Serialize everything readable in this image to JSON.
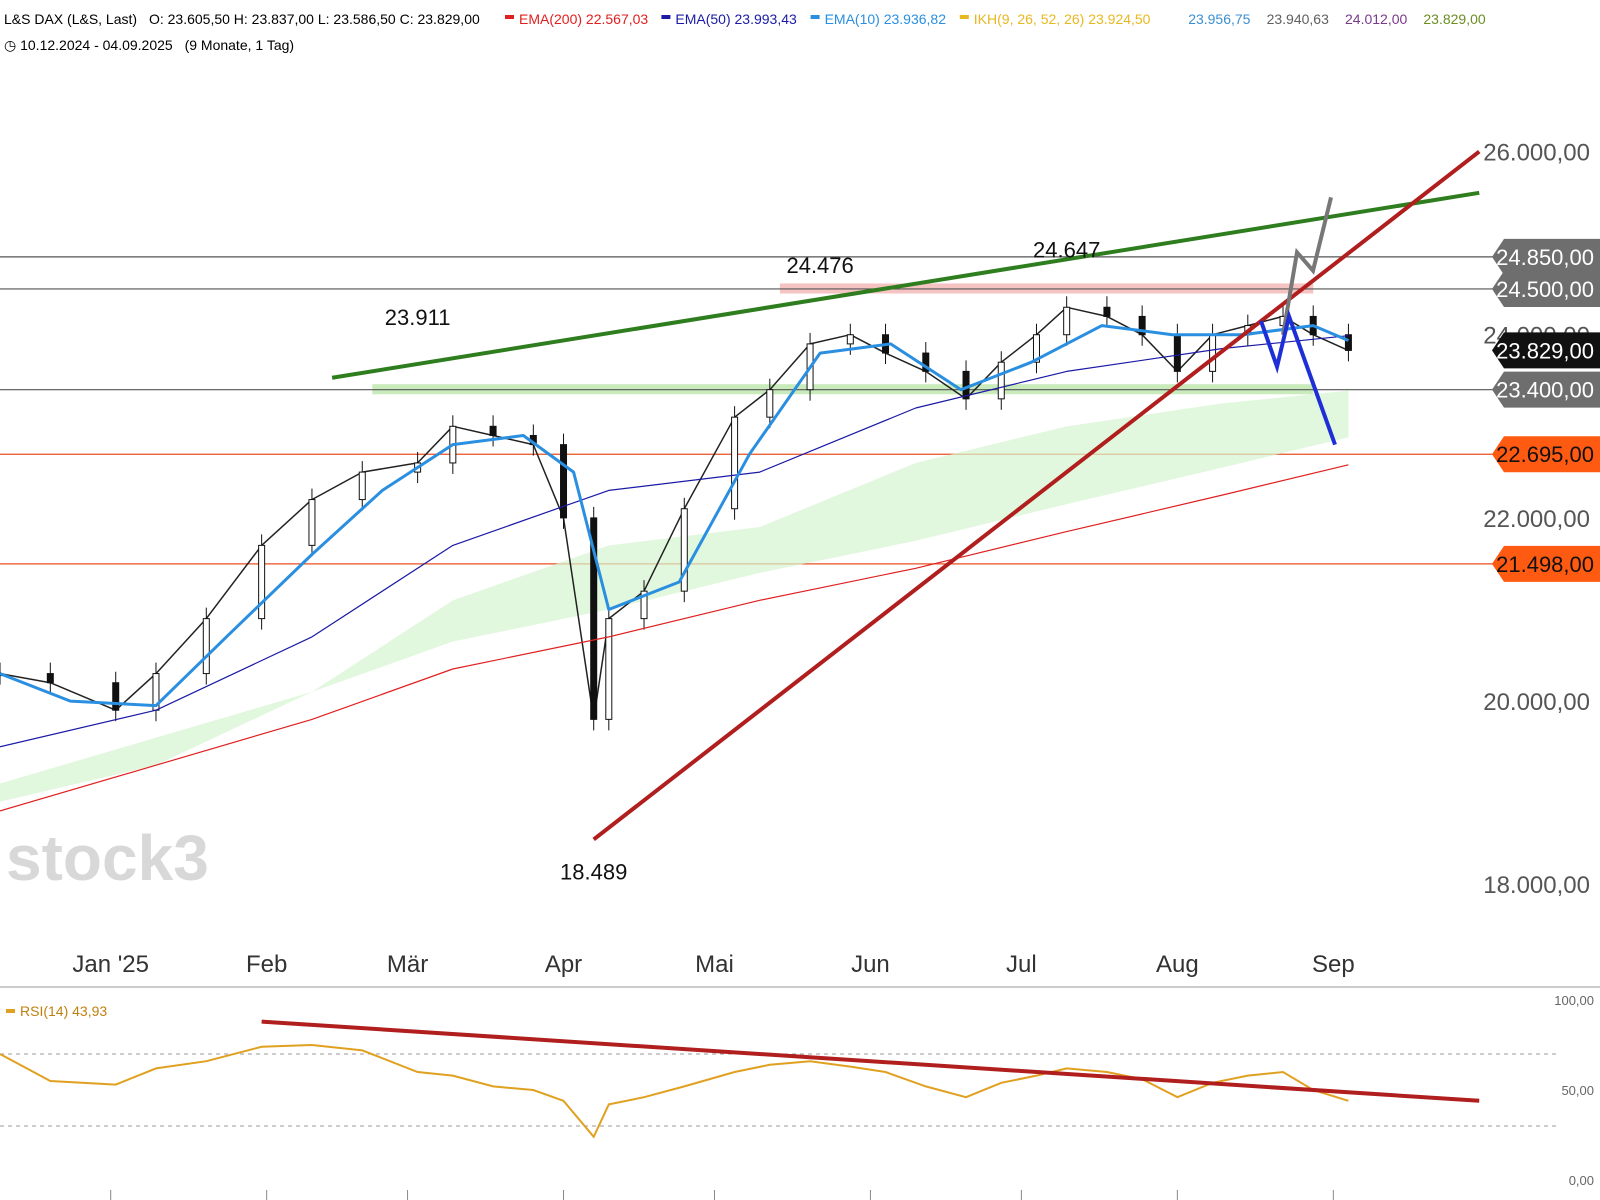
{
  "header": {
    "instrument_prefix": "L&S DAX (L&S, Last)",
    "ohlc": "O: 23.605,50  H: 23.837,00  L: 23.586,50  C: 23.829,00",
    "indicators": [
      {
        "label": "EMA(200)",
        "value": "22.567,03",
        "color": "#e02020"
      },
      {
        "label": "EMA(50)",
        "value": "23.993,43",
        "color": "#1a1aa6"
      },
      {
        "label": "EMA(10)",
        "value": "23.936,82",
        "color": "#2a8fe0"
      },
      {
        "label": "IKH(9, 26, 52, 26)",
        "value": "23.924,50",
        "color": "#e8b820"
      }
    ],
    "extra_values": [
      {
        "value": "23.956,75",
        "color": "#3c8fd0"
      },
      {
        "value": "23.940,63",
        "color": "#606060"
      },
      {
        "value": "24.012,00",
        "color": "#7a3a8a"
      },
      {
        "value": "23.829,00",
        "color": "#6b8e23"
      }
    ],
    "date_range": "10.12.2024 - 04.09.2025",
    "period": "(9 Monate, 1 Tag)"
  },
  "watermark": "stock3",
  "price_badges": [
    {
      "value": 24850,
      "label": "24.850,00",
      "bg": "#6e6e6e",
      "fg": "#ffffff"
    },
    {
      "value": 24500,
      "label": "24.500,00",
      "bg": "#6e6e6e",
      "fg": "#ffffff"
    },
    {
      "value": 23829,
      "label": "23.829,00",
      "bg": "#111111",
      "fg": "#ffffff"
    },
    {
      "value": 23400,
      "label": "23.400,00",
      "bg": "#6e6e6e",
      "fg": "#ffffff"
    },
    {
      "value": 22695,
      "label": "22.695,00",
      "bg": "#ff5a12",
      "fg": "#111111"
    },
    {
      "value": 21498,
      "label": "21.498,00",
      "bg": "#ff5a12",
      "fg": "#111111"
    }
  ],
  "chart_data": [
    {
      "type": "line",
      "title": "L&S DAX (L&S, Last)",
      "ylim": [
        17500,
        27000
      ],
      "y_ticks": [
        {
          "value": 26000,
          "label": "26.000,00"
        },
        {
          "value": 24000,
          "label": "24.000,00"
        },
        {
          "value": 22000,
          "label": "22.000,00"
        },
        {
          "value": 20000,
          "label": "20.000,00"
        },
        {
          "value": 18000,
          "label": "18.000,00"
        }
      ],
      "x_ticks": [
        "Jan '25",
        "Feb",
        "Mär",
        "Apr",
        "Mai",
        "Jun",
        "Jul",
        "Aug",
        "Sep"
      ],
      "annotations": [
        {
          "label": "24.476",
          "x": "2025-05-22",
          "y": 24476
        },
        {
          "label": "24.647",
          "x": "2025-07-10",
          "y": 24647
        },
        {
          "label": "23.911",
          "x": "2025-03-03",
          "y": 23911
        },
        {
          "label": "18.489",
          "x": "2025-04-07",
          "y": 18489
        }
      ],
      "horizontal_levels": [
        {
          "value": 24850,
          "color": "#555555"
        },
        {
          "value": 24500,
          "color": "#555555"
        },
        {
          "value": 23400,
          "color": "#555555"
        },
        {
          "value": 22695,
          "color": "#e85020"
        },
        {
          "value": 21498,
          "color": "#e85020"
        }
      ],
      "zones": [
        {
          "from": 24450,
          "to": 24560,
          "color": "#f4b8b8"
        },
        {
          "from": 23350,
          "to": 23460,
          "color": "#bfe8b0"
        }
      ],
      "trendlines": [
        {
          "from": [
            "2025-02-14",
            23530
          ],
          "to": [
            "2025-09-30",
            25550
          ],
          "color": "#2e7d1e"
        },
        {
          "from": [
            "2025-04-07",
            18489
          ],
          "to": [
            "2025-09-30",
            26000
          ],
          "color": "#b01e1e"
        }
      ],
      "series": [
        {
          "name": "L&S DAX",
          "x": [
            "2024-12-10",
            "2024-12-20",
            "2025-01-02",
            "2025-01-10",
            "2025-01-20",
            "2025-01-31",
            "2025-02-10",
            "2025-02-20",
            "2025-03-03",
            "2025-03-10",
            "2025-03-18",
            "2025-03-26",
            "2025-04-01",
            "2025-04-07",
            "2025-04-10",
            "2025-04-17",
            "2025-04-25",
            "2025-05-05",
            "2025-05-12",
            "2025-05-20",
            "2025-05-28",
            "2025-06-04",
            "2025-06-12",
            "2025-06-20",
            "2025-06-27",
            "2025-07-04",
            "2025-07-10",
            "2025-07-18",
            "2025-07-25",
            "2025-08-01",
            "2025-08-08",
            "2025-08-15",
            "2025-08-22",
            "2025-08-28",
            "2025-09-04"
          ],
          "values": [
            20300,
            20200,
            19900,
            20300,
            20900,
            21700,
            22200,
            22500,
            22600,
            23000,
            22900,
            22800,
            22000,
            19800,
            20900,
            21200,
            22100,
            23100,
            23400,
            23900,
            24000,
            23800,
            23600,
            23300,
            23700,
            24000,
            24300,
            24200,
            24000,
            23600,
            24000,
            24100,
            24200,
            24000,
            23829
          ]
        },
        {
          "name": "EMA(200)",
          "x": [
            "2024-12-10",
            "2025-01-10",
            "2025-02-10",
            "2025-03-10",
            "2025-04-10",
            "2025-05-10",
            "2025-06-10",
            "2025-07-10",
            "2025-08-10",
            "2025-09-04"
          ],
          "values": [
            18800,
            19300,
            19800,
            20350,
            20700,
            21100,
            21450,
            21850,
            22250,
            22580
          ]
        },
        {
          "name": "EMA(50)",
          "x": [
            "2024-12-10",
            "2025-01-10",
            "2025-02-10",
            "2025-03-10",
            "2025-04-10",
            "2025-05-10",
            "2025-06-10",
            "2025-07-10",
            "2025-08-10",
            "2025-09-04"
          ],
          "values": [
            19500,
            19900,
            20700,
            21700,
            22300,
            22500,
            23200,
            23600,
            23850,
            23990
          ]
        },
        {
          "name": "EMA(10)",
          "x": [
            "2024-12-10",
            "2024-12-24",
            "2025-01-10",
            "2025-01-24",
            "2025-02-10",
            "2025-02-24",
            "2025-03-10",
            "2025-03-24",
            "2025-04-03",
            "2025-04-10",
            "2025-04-24",
            "2025-05-08",
            "2025-05-22",
            "2025-06-05",
            "2025-06-19",
            "2025-07-03",
            "2025-07-17",
            "2025-07-31",
            "2025-08-14",
            "2025-08-28",
            "2025-09-04"
          ],
          "values": [
            20300,
            20000,
            19950,
            20700,
            21600,
            22300,
            22800,
            22900,
            22500,
            21000,
            21300,
            22700,
            23800,
            23900,
            23400,
            23700,
            24100,
            24000,
            24000,
            24100,
            23937
          ]
        }
      ]
    },
    {
      "type": "line",
      "title": "RSI(14)",
      "ylim": [
        0,
        100
      ],
      "y_ticks": [
        {
          "value": 100,
          "label": "100,00"
        },
        {
          "value": 50,
          "label": "50,00"
        },
        {
          "value": 0,
          "label": "0,00"
        }
      ],
      "levels": [
        70,
        30
      ],
      "series": [
        {
          "name": "RSI(14)",
          "value_label": "43,93",
          "x": [
            "2024-12-10",
            "2024-12-20",
            "2025-01-02",
            "2025-01-10",
            "2025-01-20",
            "2025-01-31",
            "2025-02-10",
            "2025-02-20",
            "2025-03-03",
            "2025-03-10",
            "2025-03-18",
            "2025-03-26",
            "2025-04-01",
            "2025-04-07",
            "2025-04-10",
            "2025-04-17",
            "2025-04-25",
            "2025-05-05",
            "2025-05-12",
            "2025-05-20",
            "2025-05-28",
            "2025-06-04",
            "2025-06-12",
            "2025-06-20",
            "2025-06-27",
            "2025-07-04",
            "2025-07-10",
            "2025-07-18",
            "2025-07-25",
            "2025-08-01",
            "2025-08-08",
            "2025-08-15",
            "2025-08-22",
            "2025-08-28",
            "2025-09-04"
          ],
          "values": [
            70,
            55,
            53,
            62,
            66,
            74,
            75,
            72,
            60,
            58,
            52,
            50,
            44,
            24,
            42,
            46,
            52,
            60,
            64,
            66,
            63,
            60,
            52,
            46,
            54,
            58,
            62,
            60,
            56,
            46,
            54,
            58,
            60,
            50,
            44
          ]
        }
      ],
      "trendlines": [
        {
          "from": [
            "2025-01-31",
            88
          ],
          "to": [
            "2025-09-30",
            44
          ],
          "color": "#b01e1e"
        }
      ]
    }
  ]
}
